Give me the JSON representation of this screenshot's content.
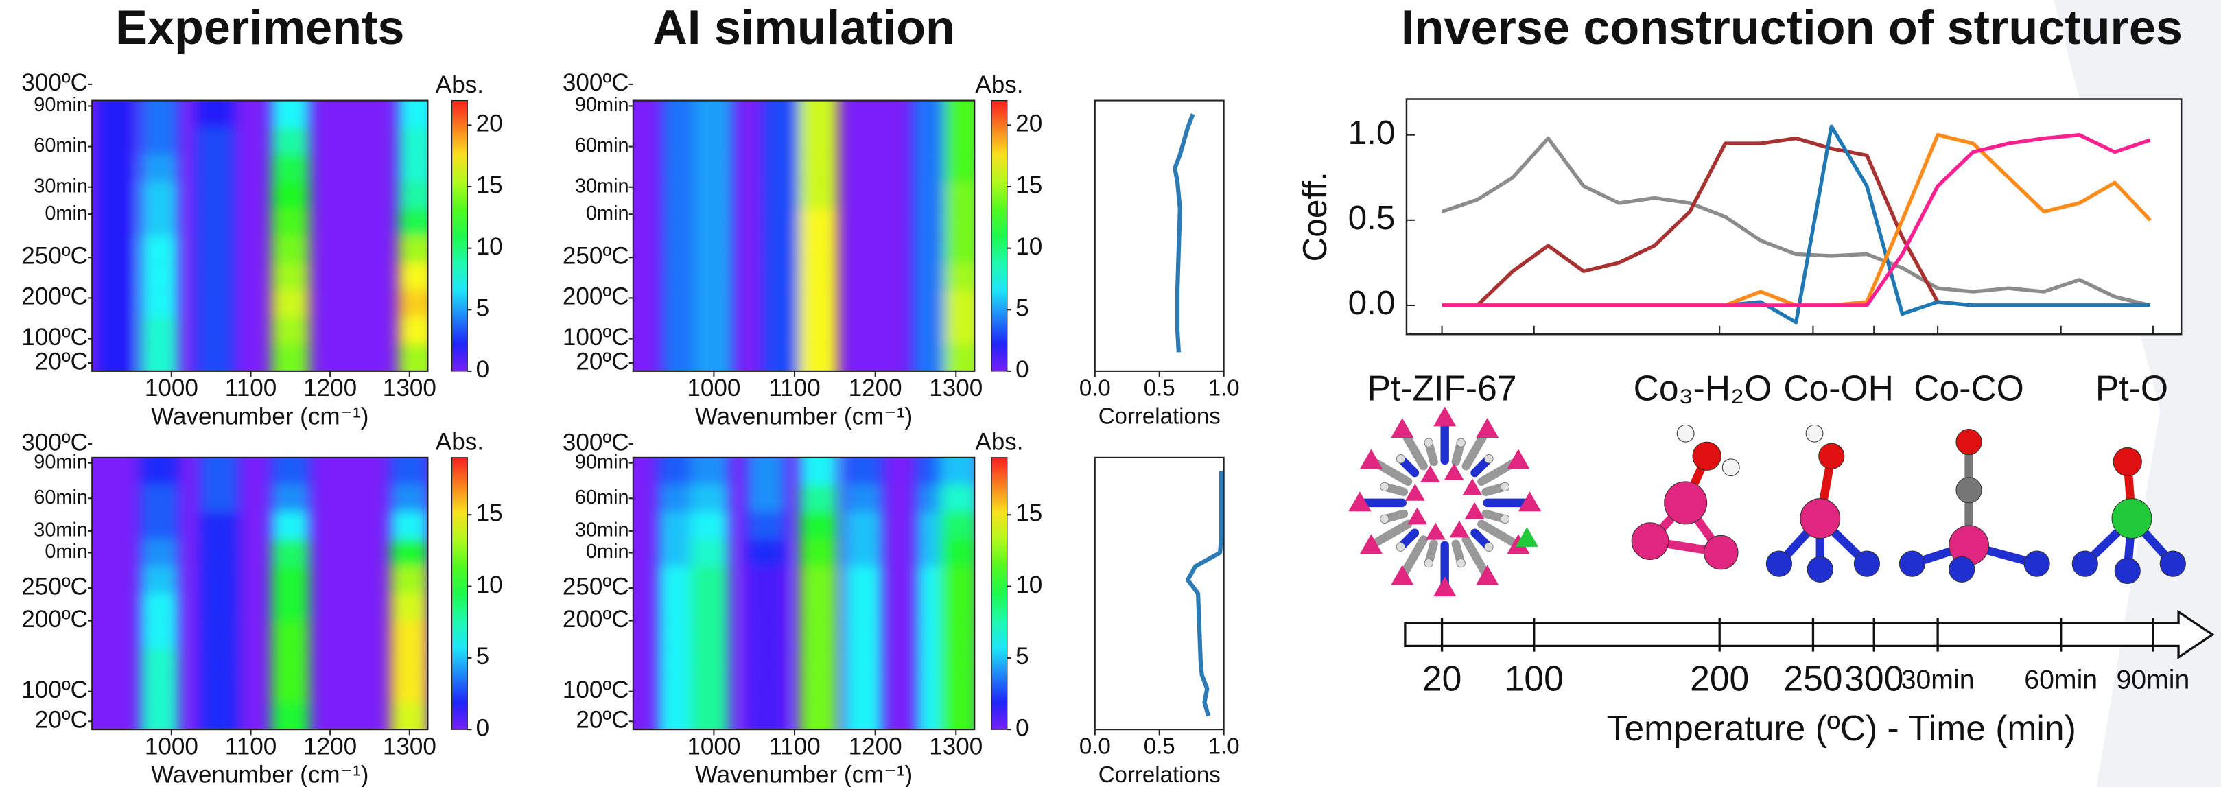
{
  "chart_data": [
    {
      "type": "heatmap",
      "title": "Experiments",
      "xlabel": "Wavenumber (cm⁻¹)",
      "xlim": [
        900,
        1323
      ],
      "xticks": [
        1000,
        1100,
        1200,
        1300
      ],
      "ylim": [
        0,
        1
      ],
      "yticks": [
        {
          "value": 1.06,
          "label": "300ºC"
        },
        {
          "value": 0.98,
          "label": "90min"
        },
        {
          "value": 0.83,
          "label": "60min"
        },
        {
          "value": 0.68,
          "label": "30min"
        },
        {
          "value": 0.58,
          "label": "0min"
        },
        {
          "value": 0.42,
          "label": "250ºC"
        },
        {
          "value": 0.27,
          "label": "200ºC"
        },
        {
          "value": 0.12,
          "label": "100ºC"
        },
        {
          "value": 0.03,
          "label": "20ºC"
        }
      ],
      "colorbar_label": "Abs.",
      "clim": [
        0,
        22
      ],
      "cticks": [
        0,
        5,
        10,
        15,
        20
      ],
      "x": [
        930,
        985,
        1055,
        1150,
        1310
      ],
      "y": [
        0.05,
        0.15,
        0.25,
        0.35,
        0.45,
        0.55,
        0.65,
        0.75,
        0.85,
        0.95
      ],
      "z": [
        [
          2,
          8,
          3,
          14,
          15
        ],
        [
          2,
          8,
          3,
          15,
          17
        ],
        [
          2,
          7,
          3,
          16,
          18
        ],
        [
          2,
          7,
          3,
          15,
          17
        ],
        [
          2,
          7,
          3,
          14,
          15
        ],
        [
          2,
          6,
          3,
          13,
          11
        ],
        [
          2,
          6,
          3,
          12,
          9
        ],
        [
          2,
          5,
          3,
          11,
          8
        ],
        [
          2,
          4,
          3,
          9,
          8
        ],
        [
          2,
          4,
          2,
          7,
          7
        ]
      ]
    },
    {
      "type": "heatmap",
      "title": "AI simulation",
      "xlabel": "Wavenumber (cm⁻¹)",
      "xlim": [
        900,
        1323
      ],
      "xticks": [
        1000,
        1100,
        1200,
        1300
      ],
      "ylim": [
        0,
        1
      ],
      "yticks": [
        {
          "value": 1.06,
          "label": "300ºC"
        },
        {
          "value": 0.98,
          "label": "90min"
        },
        {
          "value": 0.83,
          "label": "60min"
        },
        {
          "value": 0.68,
          "label": "30min"
        },
        {
          "value": 0.58,
          "label": "0min"
        },
        {
          "value": 0.42,
          "label": "250ºC"
        },
        {
          "value": 0.27,
          "label": "200ºC"
        },
        {
          "value": 0.12,
          "label": "100ºC"
        },
        {
          "value": 0.03,
          "label": "20ºC"
        }
      ],
      "colorbar_label": "Abs.",
      "clim": [
        0,
        22
      ],
      "cticks": [
        0,
        5,
        10,
        15,
        20
      ],
      "x": [
        960,
        1000,
        1085,
        1130,
        1270,
        1310
      ],
      "y": [
        0.05,
        0.15,
        0.25,
        0.35,
        0.45,
        0.55,
        0.65,
        0.75,
        0.85,
        0.95
      ],
      "z": [
        [
          4,
          5,
          3,
          17,
          4,
          15
        ],
        [
          4,
          5,
          3,
          17,
          4,
          16
        ],
        [
          4,
          5,
          3,
          17,
          4,
          16
        ],
        [
          4,
          5,
          3,
          17,
          4,
          15
        ],
        [
          4,
          5,
          3,
          17,
          4,
          14
        ],
        [
          4,
          5,
          3,
          17,
          4,
          14
        ],
        [
          4,
          5,
          3,
          16,
          4,
          14
        ],
        [
          4,
          5,
          3,
          16,
          4,
          13
        ],
        [
          4,
          5,
          3,
          16,
          4,
          13
        ],
        [
          4,
          5,
          3,
          16,
          4,
          13
        ]
      ]
    },
    {
      "type": "line",
      "xlabel": "Correlations",
      "xlim": [
        0,
        1
      ],
      "xticks": [
        {
          "value": 0,
          "label": "0.0"
        },
        0.5,
        {
          "value": 1,
          "label": "1.0"
        }
      ],
      "ylim": [
        0,
        1
      ],
      "y": [
        0.07,
        0.15,
        0.3,
        0.45,
        0.6,
        0.7,
        0.75,
        0.8,
        0.9,
        0.95
      ],
      "values": [
        0.65,
        0.64,
        0.64,
        0.65,
        0.66,
        0.64,
        0.62,
        0.66,
        0.72,
        0.76
      ],
      "color": "#2c7bb6"
    },
    {
      "type": "heatmap",
      "xlabel": "Wavenumber (cm⁻¹)",
      "xlim": [
        900,
        1323
      ],
      "xticks": [
        1000,
        1100,
        1200,
        1300
      ],
      "ylim": [
        0,
        1
      ],
      "yticks": [
        {
          "value": 1.05,
          "label": "300ºC"
        },
        {
          "value": 0.98,
          "label": "90min"
        },
        {
          "value": 0.85,
          "label": "60min"
        },
        {
          "value": 0.73,
          "label": "30min"
        },
        {
          "value": 0.65,
          "label": "0min"
        },
        {
          "value": 0.52,
          "label": "250ºC"
        },
        {
          "value": 0.4,
          "label": "200ºC"
        },
        {
          "value": 0.14,
          "label": "100ºC"
        },
        {
          "value": 0.03,
          "label": "20ºC"
        }
      ],
      "colorbar_label": "Abs.",
      "clim": [
        0,
        19
      ],
      "cticks": [
        0,
        5,
        10,
        15
      ],
      "x": [
        985,
        1060,
        1150,
        1300
      ],
      "y": [
        0.05,
        0.15,
        0.25,
        0.35,
        0.45,
        0.55,
        0.65,
        0.75,
        0.85,
        0.95
      ],
      "z": [
        [
          7,
          2,
          10,
          14
        ],
        [
          7,
          2,
          11,
          15
        ],
        [
          7,
          2,
          11,
          15
        ],
        [
          6,
          2,
          11,
          15
        ],
        [
          6,
          2,
          10,
          14
        ],
        [
          5,
          2,
          10,
          13
        ],
        [
          4,
          2,
          9,
          10
        ],
        [
          3,
          2,
          6,
          6
        ],
        [
          3,
          3,
          4,
          4
        ],
        [
          2,
          3,
          3,
          3
        ]
      ]
    },
    {
      "type": "heatmap",
      "xlabel": "Wavenumber (cm⁻¹)",
      "xlim": [
        900,
        1323
      ],
      "xticks": [
        1000,
        1100,
        1200,
        1300
      ],
      "ylim": [
        0,
        1
      ],
      "yticks": [
        {
          "value": 1.05,
          "label": "300ºC"
        },
        {
          "value": 0.98,
          "label": "90min"
        },
        {
          "value": 0.85,
          "label": "60min"
        },
        {
          "value": 0.73,
          "label": "30min"
        },
        {
          "value": 0.65,
          "label": "0min"
        },
        {
          "value": 0.52,
          "label": "250ºC"
        },
        {
          "value": 0.4,
          "label": "200ºC"
        },
        {
          "value": 0.14,
          "label": "100ºC"
        },
        {
          "value": 0.03,
          "label": "20ºC"
        }
      ],
      "colorbar_label": "Abs.",
      "clim": [
        0,
        19
      ],
      "cticks": [
        0,
        5,
        10,
        15
      ],
      "x": [
        955,
        995,
        1065,
        1130,
        1185,
        1275,
        1305
      ],
      "y": [
        0.05,
        0.15,
        0.25,
        0.35,
        0.45,
        0.55,
        0.65,
        0.75,
        0.85,
        0.95
      ],
      "z": [
        [
          6,
          8,
          1,
          12,
          6,
          6,
          11
        ],
        [
          6,
          8,
          1,
          12,
          6,
          6,
          11
        ],
        [
          6,
          8,
          1,
          12,
          6,
          6,
          11
        ],
        [
          6,
          8,
          1,
          12,
          6,
          6,
          11
        ],
        [
          6,
          8,
          1,
          12,
          6,
          6,
          11
        ],
        [
          6,
          8,
          1,
          12,
          6,
          6,
          11
        ],
        [
          5,
          7,
          2,
          11,
          5,
          5,
          10
        ],
        [
          5,
          6,
          3,
          10,
          5,
          5,
          9
        ],
        [
          4,
          5,
          4,
          8,
          4,
          4,
          7
        ],
        [
          3,
          4,
          4,
          6,
          3,
          3,
          5
        ]
      ]
    },
    {
      "type": "line",
      "xlabel": "Correlations",
      "xlim": [
        0,
        1
      ],
      "xticks": [
        {
          "value": 0,
          "label": "0.0"
        },
        0.5,
        {
          "value": 1,
          "label": "1.0"
        }
      ],
      "ylim": [
        0,
        1
      ],
      "y": [
        0.05,
        0.1,
        0.15,
        0.2,
        0.25,
        0.5,
        0.55,
        0.6,
        0.65,
        0.7,
        0.8,
        0.95
      ],
      "values": [
        0.88,
        0.85,
        0.87,
        0.83,
        0.82,
        0.8,
        0.72,
        0.78,
        0.97,
        0.98,
        0.98,
        0.98
      ],
      "color": "#2c7bb6"
    },
    {
      "type": "line",
      "title": "Inverse construction of structures",
      "ylabel": "Coeff.",
      "xlabel": "Temperature (ºC) - Time (min)",
      "ylim": [
        -0.17,
        1.21
      ],
      "yticks": [
        {
          "value": 0,
          "label": "0.0"
        },
        0.5,
        {
          "value": 1,
          "label": "1.0"
        }
      ],
      "xlim": [
        -25,
        522
      ],
      "xticks": [
        {
          "value": 0,
          "label": "20"
        },
        {
          "value": 65,
          "label": "100"
        },
        {
          "value": 196,
          "label": "200"
        },
        {
          "value": 262,
          "label": "250"
        },
        {
          "value": 305,
          "label": "300"
        },
        {
          "value": 350,
          "label": "30min"
        },
        {
          "value": 437,
          "label": "60min"
        },
        {
          "value": 502,
          "label": "90min"
        }
      ],
      "x": [
        0,
        25,
        50,
        75,
        100,
        125,
        150,
        175,
        200,
        225,
        250,
        275,
        300,
        325,
        350,
        375,
        400,
        425,
        450,
        475,
        500
      ],
      "series": [
        {
          "name": "Pt-ZIF-67",
          "color": "#8c8c8c",
          "values": [
            0.55,
            0.62,
            0.75,
            0.98,
            0.7,
            0.6,
            0.63,
            0.6,
            0.52,
            0.38,
            0.3,
            0.29,
            0.3,
            0.22,
            0.1,
            0.08,
            0.1,
            0.08,
            0.15,
            0.05,
            0
          ]
        },
        {
          "name": "Co₃-H₂O",
          "color": "#a83232",
          "values": [
            0,
            0,
            0.2,
            0.35,
            0.2,
            0.25,
            0.35,
            0.55,
            0.95,
            0.95,
            0.98,
            0.92,
            0.88,
            0.4,
            0.02,
            0,
            0,
            0,
            0,
            0,
            0
          ]
        },
        {
          "name": "Co-OH",
          "color": "#1f77b4",
          "values": [
            0,
            0,
            0,
            0,
            0,
            0,
            0,
            0,
            0,
            0.02,
            -0.1,
            1.05,
            0.7,
            -0.05,
            0.02,
            0,
            0,
            0,
            0,
            0,
            0
          ]
        },
        {
          "name": "Co-CO",
          "color": "#ff8c1a",
          "values": [
            0,
            0,
            0,
            0,
            0,
            0,
            0,
            0,
            0,
            0.08,
            0,
            0,
            0.02,
            0.5,
            1,
            0.95,
            0.75,
            0.55,
            0.6,
            0.72,
            0.5
          ]
        },
        {
          "name": "Pt-O",
          "color": "#ff2090",
          "values": [
            0,
            0,
            0,
            0,
            0,
            0,
            0,
            0,
            0,
            0,
            0,
            0,
            0,
            0.3,
            0.7,
            0.9,
            0.95,
            0.98,
            1,
            0.9,
            0.97
          ]
        }
      ]
    }
  ]
}
